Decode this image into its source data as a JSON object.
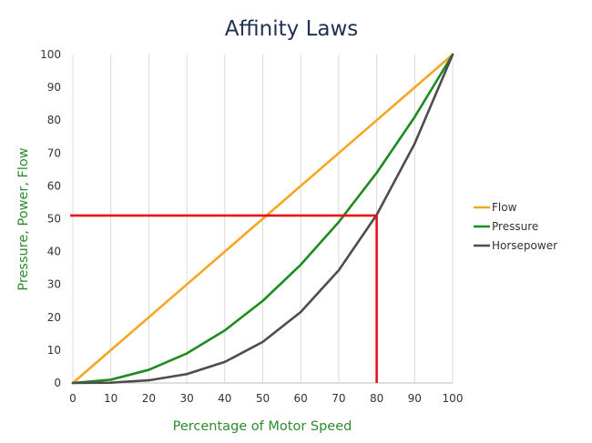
{
  "chart_data": {
    "type": "line",
    "title": "Affinity Laws",
    "xlabel": "Percentage of Motor Speed",
    "ylabel": "Pressure, Power, Flow",
    "xlim": [
      0,
      100
    ],
    "ylim": [
      0,
      100
    ],
    "x_ticks": [
      "0",
      "10",
      "20",
      "30",
      "40",
      "50",
      "60",
      "70",
      "80",
      "90",
      "100"
    ],
    "y_ticks": [
      "0",
      "10",
      "20",
      "30",
      "40",
      "50",
      "60",
      "70",
      "80",
      "90",
      "100"
    ],
    "grid": "vertical",
    "legend_position": "right",
    "x": [
      0,
      10,
      20,
      30,
      40,
      50,
      60,
      70,
      80,
      90,
      100
    ],
    "series": [
      {
        "name": "Flow",
        "color": "#f5a623",
        "values": [
          0,
          10,
          20,
          30,
          40,
          50,
          60,
          70,
          80,
          90,
          100
        ]
      },
      {
        "name": "Pressure",
        "color": "#1f8a1f",
        "values": [
          0,
          1,
          4,
          9,
          16,
          25,
          36,
          49,
          64,
          81,
          100
        ]
      },
      {
        "name": "Horsepower",
        "color": "#4d4d4d",
        "values": [
          0,
          0.1,
          0.8,
          2.7,
          6.4,
          12.5,
          21.6,
          34.3,
          51.2,
          72.9,
          100
        ]
      }
    ],
    "annotations": [
      {
        "type": "reference-lines",
        "color": "#e8101a",
        "x": 80,
        "y": 51
      }
    ]
  }
}
